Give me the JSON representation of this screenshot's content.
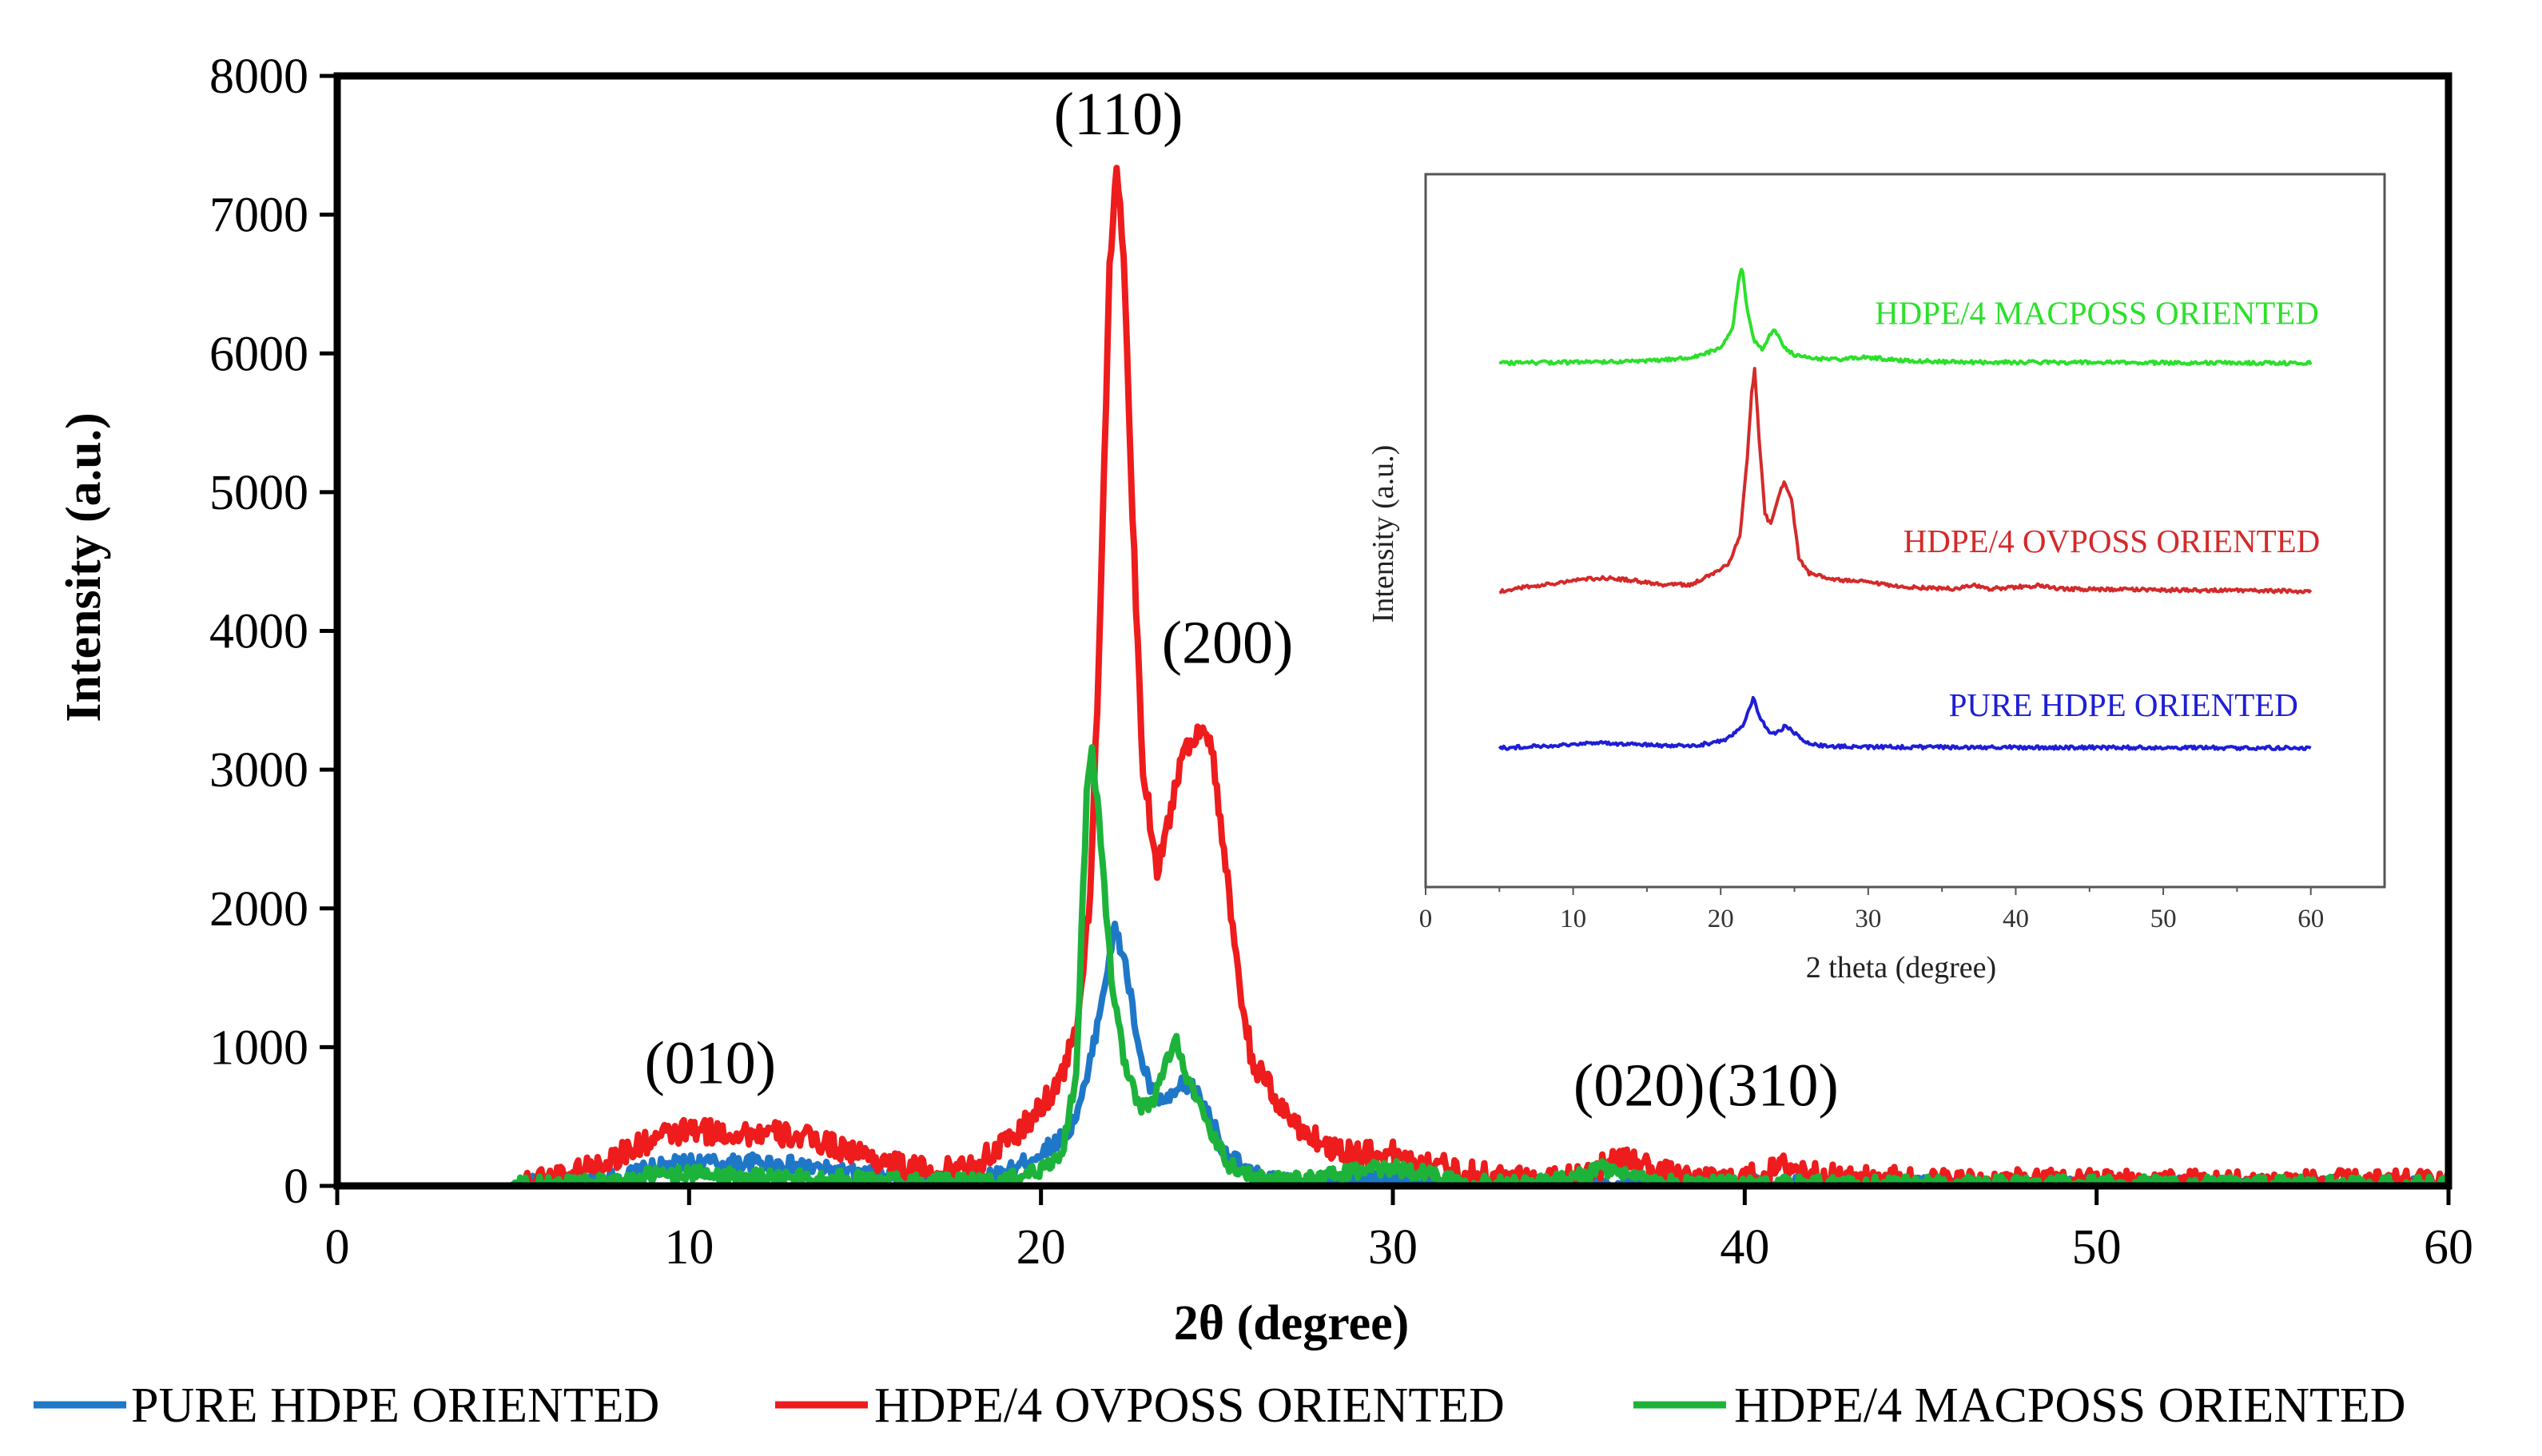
{
  "chart_data": [
    {
      "id": "main",
      "type": "line",
      "xlabel": "2θ (degree)",
      "ylabel": "Intensity (a.u.)",
      "xlim": [
        0,
        60
      ],
      "ylim": [
        0,
        8000
      ],
      "xticks": [
        0,
        10,
        20,
        30,
        40,
        50,
        60
      ],
      "xtick_labels": [
        "0",
        "10",
        "20",
        "30",
        "40",
        "50",
        "60"
      ],
      "yticks": [
        0,
        1000,
        2000,
        3000,
        4000,
        5000,
        6000,
        7000,
        8000
      ],
      "ytick_labels": [
        "0",
        "1000",
        "2000",
        "3000",
        "4000",
        "5000",
        "6000",
        "7000",
        "8000"
      ],
      "grid": false,
      "legend_position": "bottom",
      "series": [
        {
          "name": "PURE HDPE ORIENTED",
          "color": "#1f77c8",
          "points": [
            [
              5,
              5
            ],
            [
              8,
              60
            ],
            [
              9,
              130
            ],
            [
              10,
              170
            ],
            [
              11,
              160
            ],
            [
              12,
              170
            ],
            [
              13,
              150
            ],
            [
              14,
              110
            ],
            [
              15,
              80
            ],
            [
              16,
              60
            ],
            [
              17,
              40
            ],
            [
              18,
              40
            ],
            [
              19,
              90
            ],
            [
              20,
              240
            ],
            [
              20.8,
              380
            ],
            [
              21.3,
              750
            ],
            [
              21.8,
              1450
            ],
            [
              22.1,
              1850
            ],
            [
              22.4,
              1600
            ],
            [
              22.8,
              950
            ],
            [
              23.2,
              640
            ],
            [
              23.6,
              600
            ],
            [
              24,
              720
            ],
            [
              24.3,
              710
            ],
            [
              24.7,
              560
            ],
            [
              25.2,
              250
            ],
            [
              26,
              80
            ],
            [
              27,
              20
            ],
            [
              28,
              20
            ],
            [
              29,
              50
            ],
            [
              30,
              50
            ],
            [
              31,
              20
            ],
            [
              32,
              10
            ],
            [
              60,
              10
            ]
          ],
          "noise": 60
        },
        {
          "name": "HDPE/4 OVPOSS ORIENTED",
          "color": "#ee1c1c",
          "points": [
            [
              5,
              10
            ],
            [
              6,
              60
            ],
            [
              7,
              120
            ],
            [
              8,
              220
            ],
            [
              9,
              340
            ],
            [
              10,
              400
            ],
            [
              11,
              380
            ],
            [
              12,
              380
            ],
            [
              13,
              360
            ],
            [
              14,
              300
            ],
            [
              15,
              220
            ],
            [
              16,
              140
            ],
            [
              17,
              100
            ],
            [
              18,
              130
            ],
            [
              19,
              300
            ],
            [
              19.8,
              500
            ],
            [
              20.5,
              750
            ],
            [
              21,
              1100
            ],
            [
              21.4,
              2100
            ],
            [
              21.7,
              4200
            ],
            [
              21.95,
              6600
            ],
            [
              22.15,
              7380
            ],
            [
              22.35,
              6700
            ],
            [
              22.6,
              4800
            ],
            [
              22.9,
              3000
            ],
            [
              23.3,
              2300
            ],
            [
              23.6,
              2600
            ],
            [
              24,
              3100
            ],
            [
              24.5,
              3300
            ],
            [
              24.8,
              3250
            ],
            [
              25.2,
              2400
            ],
            [
              25.6,
              1500
            ],
            [
              26,
              900
            ],
            [
              27,
              500
            ],
            [
              28,
              300
            ],
            [
              29,
              230
            ],
            [
              30,
              230
            ],
            [
              31,
              170
            ],
            [
              32,
              100
            ],
            [
              33,
              60
            ],
            [
              34,
              40
            ],
            [
              35,
              70
            ],
            [
              36,
              150
            ],
            [
              36.8,
              190
            ],
            [
              37.5,
              110
            ],
            [
              38.5,
              30
            ],
            [
              39.5,
              40
            ],
            [
              40.5,
              80
            ],
            [
              41.2,
              150
            ],
            [
              42,
              90
            ],
            [
              43,
              40
            ],
            [
              44,
              60
            ],
            [
              45,
              40
            ],
            [
              46,
              30
            ],
            [
              50,
              30
            ],
            [
              60,
              20
            ]
          ],
          "noise": 90
        },
        {
          "name": "HDPE/4 MACPOSS ORIENTED",
          "color": "#1db33b",
          "points": [
            [
              5,
              5
            ],
            [
              8,
              40
            ],
            [
              9,
              80
            ],
            [
              10,
              90
            ],
            [
              11,
              80
            ],
            [
              12,
              70
            ],
            [
              13,
              60
            ],
            [
              14,
              60
            ],
            [
              15,
              50
            ],
            [
              16,
              40
            ],
            [
              17,
              40
            ],
            [
              18,
              30
            ],
            [
              19,
              40
            ],
            [
              20,
              120
            ],
            [
              20.6,
              240
            ],
            [
              21,
              800
            ],
            [
              21.3,
              2800
            ],
            [
              21.45,
              3150
            ],
            [
              21.7,
              2500
            ],
            [
              22,
              1500
            ],
            [
              22.4,
              850
            ],
            [
              22.8,
              560
            ],
            [
              23.2,
              600
            ],
            [
              23.6,
              930
            ],
            [
              23.85,
              1050
            ],
            [
              24.2,
              760
            ],
            [
              24.7,
              450
            ],
            [
              25.3,
              160
            ],
            [
              26,
              60
            ],
            [
              27,
              40
            ],
            [
              28,
              60
            ],
            [
              29,
              110
            ],
            [
              30,
              130
            ],
            [
              31,
              90
            ],
            [
              32,
              40
            ],
            [
              33,
              20
            ],
            [
              35,
              40
            ],
            [
              36,
              130
            ],
            [
              36.7,
              60
            ],
            [
              38,
              15
            ],
            [
              50,
              15
            ],
            [
              60,
              15
            ]
          ],
          "noise": 55
        }
      ],
      "annotations": [
        {
          "text": "(010)",
          "x": 10.6,
          "y": 740
        },
        {
          "text": "(110)",
          "x": 22.2,
          "y": 7580
        },
        {
          "text": "(200)",
          "x": 25.3,
          "y": 3770
        },
        {
          "text": "(020)",
          "x": 37.0,
          "y": 580
        },
        {
          "text": "(310)",
          "x": 40.8,
          "y": 580
        }
      ]
    },
    {
      "id": "inset",
      "type": "line",
      "xlabel": "2 theta (degree)",
      "ylabel": "Intensity (a.u.)",
      "xlim": [
        0,
        65
      ],
      "ylim": [
        0,
        100
      ],
      "xticks": [
        0,
        10,
        20,
        30,
        40,
        50,
        60
      ],
      "xtick_labels": [
        "0",
        "10",
        "20",
        "30",
        "40",
        "50",
        "60"
      ],
      "grid": false,
      "series": [
        {
          "name": "HDPE/4 MACPOSS ORIENTED",
          "color": "#2be02b",
          "offset": 73.5,
          "scale": 13.5,
          "label_x": 45.5,
          "label_y": 79,
          "points": [
            [
              5,
              0
            ],
            [
              15,
              0.02
            ],
            [
              18,
              0.06
            ],
            [
              20,
              0.15
            ],
            [
              20.8,
              0.35
            ],
            [
              21.2,
              0.85
            ],
            [
              21.45,
              1.0
            ],
            [
              21.8,
              0.55
            ],
            [
              22.3,
              0.22
            ],
            [
              22.8,
              0.15
            ],
            [
              23.3,
              0.28
            ],
            [
              23.7,
              0.35
            ],
            [
              24.2,
              0.18
            ],
            [
              25,
              0.08
            ],
            [
              26,
              0.05
            ],
            [
              28,
              0.04
            ],
            [
              30,
              0.06
            ],
            [
              32,
              0.03
            ],
            [
              36,
              0.01
            ],
            [
              60,
              0
            ]
          ]
        },
        {
          "name": "HDPE/4 OVPOSS ORIENTED",
          "color": "#d42a2a",
          "offset": 41.5,
          "scale": 31,
          "label_x": 46.5,
          "label_y": 47,
          "points": [
            [
              5,
              0
            ],
            [
              8,
              0.03
            ],
            [
              10,
              0.05
            ],
            [
              12,
              0.06
            ],
            [
              14,
              0.05
            ],
            [
              16,
              0.03
            ],
            [
              18,
              0.03
            ],
            [
              19.5,
              0.08
            ],
            [
              20.5,
              0.12
            ],
            [
              21.3,
              0.25
            ],
            [
              21.8,
              0.6
            ],
            [
              22.1,
              0.9
            ],
            [
              22.3,
              1.0
            ],
            [
              22.6,
              0.7
            ],
            [
              23,
              0.35
            ],
            [
              23.4,
              0.3
            ],
            [
              23.8,
              0.4
            ],
            [
              24.3,
              0.5
            ],
            [
              24.8,
              0.42
            ],
            [
              25.3,
              0.15
            ],
            [
              26,
              0.08
            ],
            [
              28,
              0.05
            ],
            [
              30,
              0.04
            ],
            [
              32,
              0.02
            ],
            [
              36,
              0.01
            ],
            [
              37,
              0.03
            ],
            [
              38,
              0.01
            ],
            [
              41.5,
              0.025
            ],
            [
              43,
              0.01
            ],
            [
              60,
              0
            ]
          ]
        },
        {
          "name": "PURE HDPE ORIENTED",
          "color": "#1e1ed6",
          "offset": 19.5,
          "scale": 7,
          "label_x": 47.3,
          "label_y": 24,
          "points": [
            [
              5,
              0
            ],
            [
              8,
              0.04
            ],
            [
              10,
              0.08
            ],
            [
              12,
              0.1
            ],
            [
              14,
              0.08
            ],
            [
              16,
              0.05
            ],
            [
              18,
              0.05
            ],
            [
              19.5,
              0.1
            ],
            [
              20.5,
              0.2
            ],
            [
              21.5,
              0.45
            ],
            [
              22.2,
              1.0
            ],
            [
              22.7,
              0.6
            ],
            [
              23.2,
              0.35
            ],
            [
              23.8,
              0.3
            ],
            [
              24.4,
              0.45
            ],
            [
              25,
              0.3
            ],
            [
              25.7,
              0.12
            ],
            [
              27,
              0.04
            ],
            [
              30,
              0.02
            ],
            [
              60,
              0
            ]
          ]
        }
      ]
    }
  ]
}
